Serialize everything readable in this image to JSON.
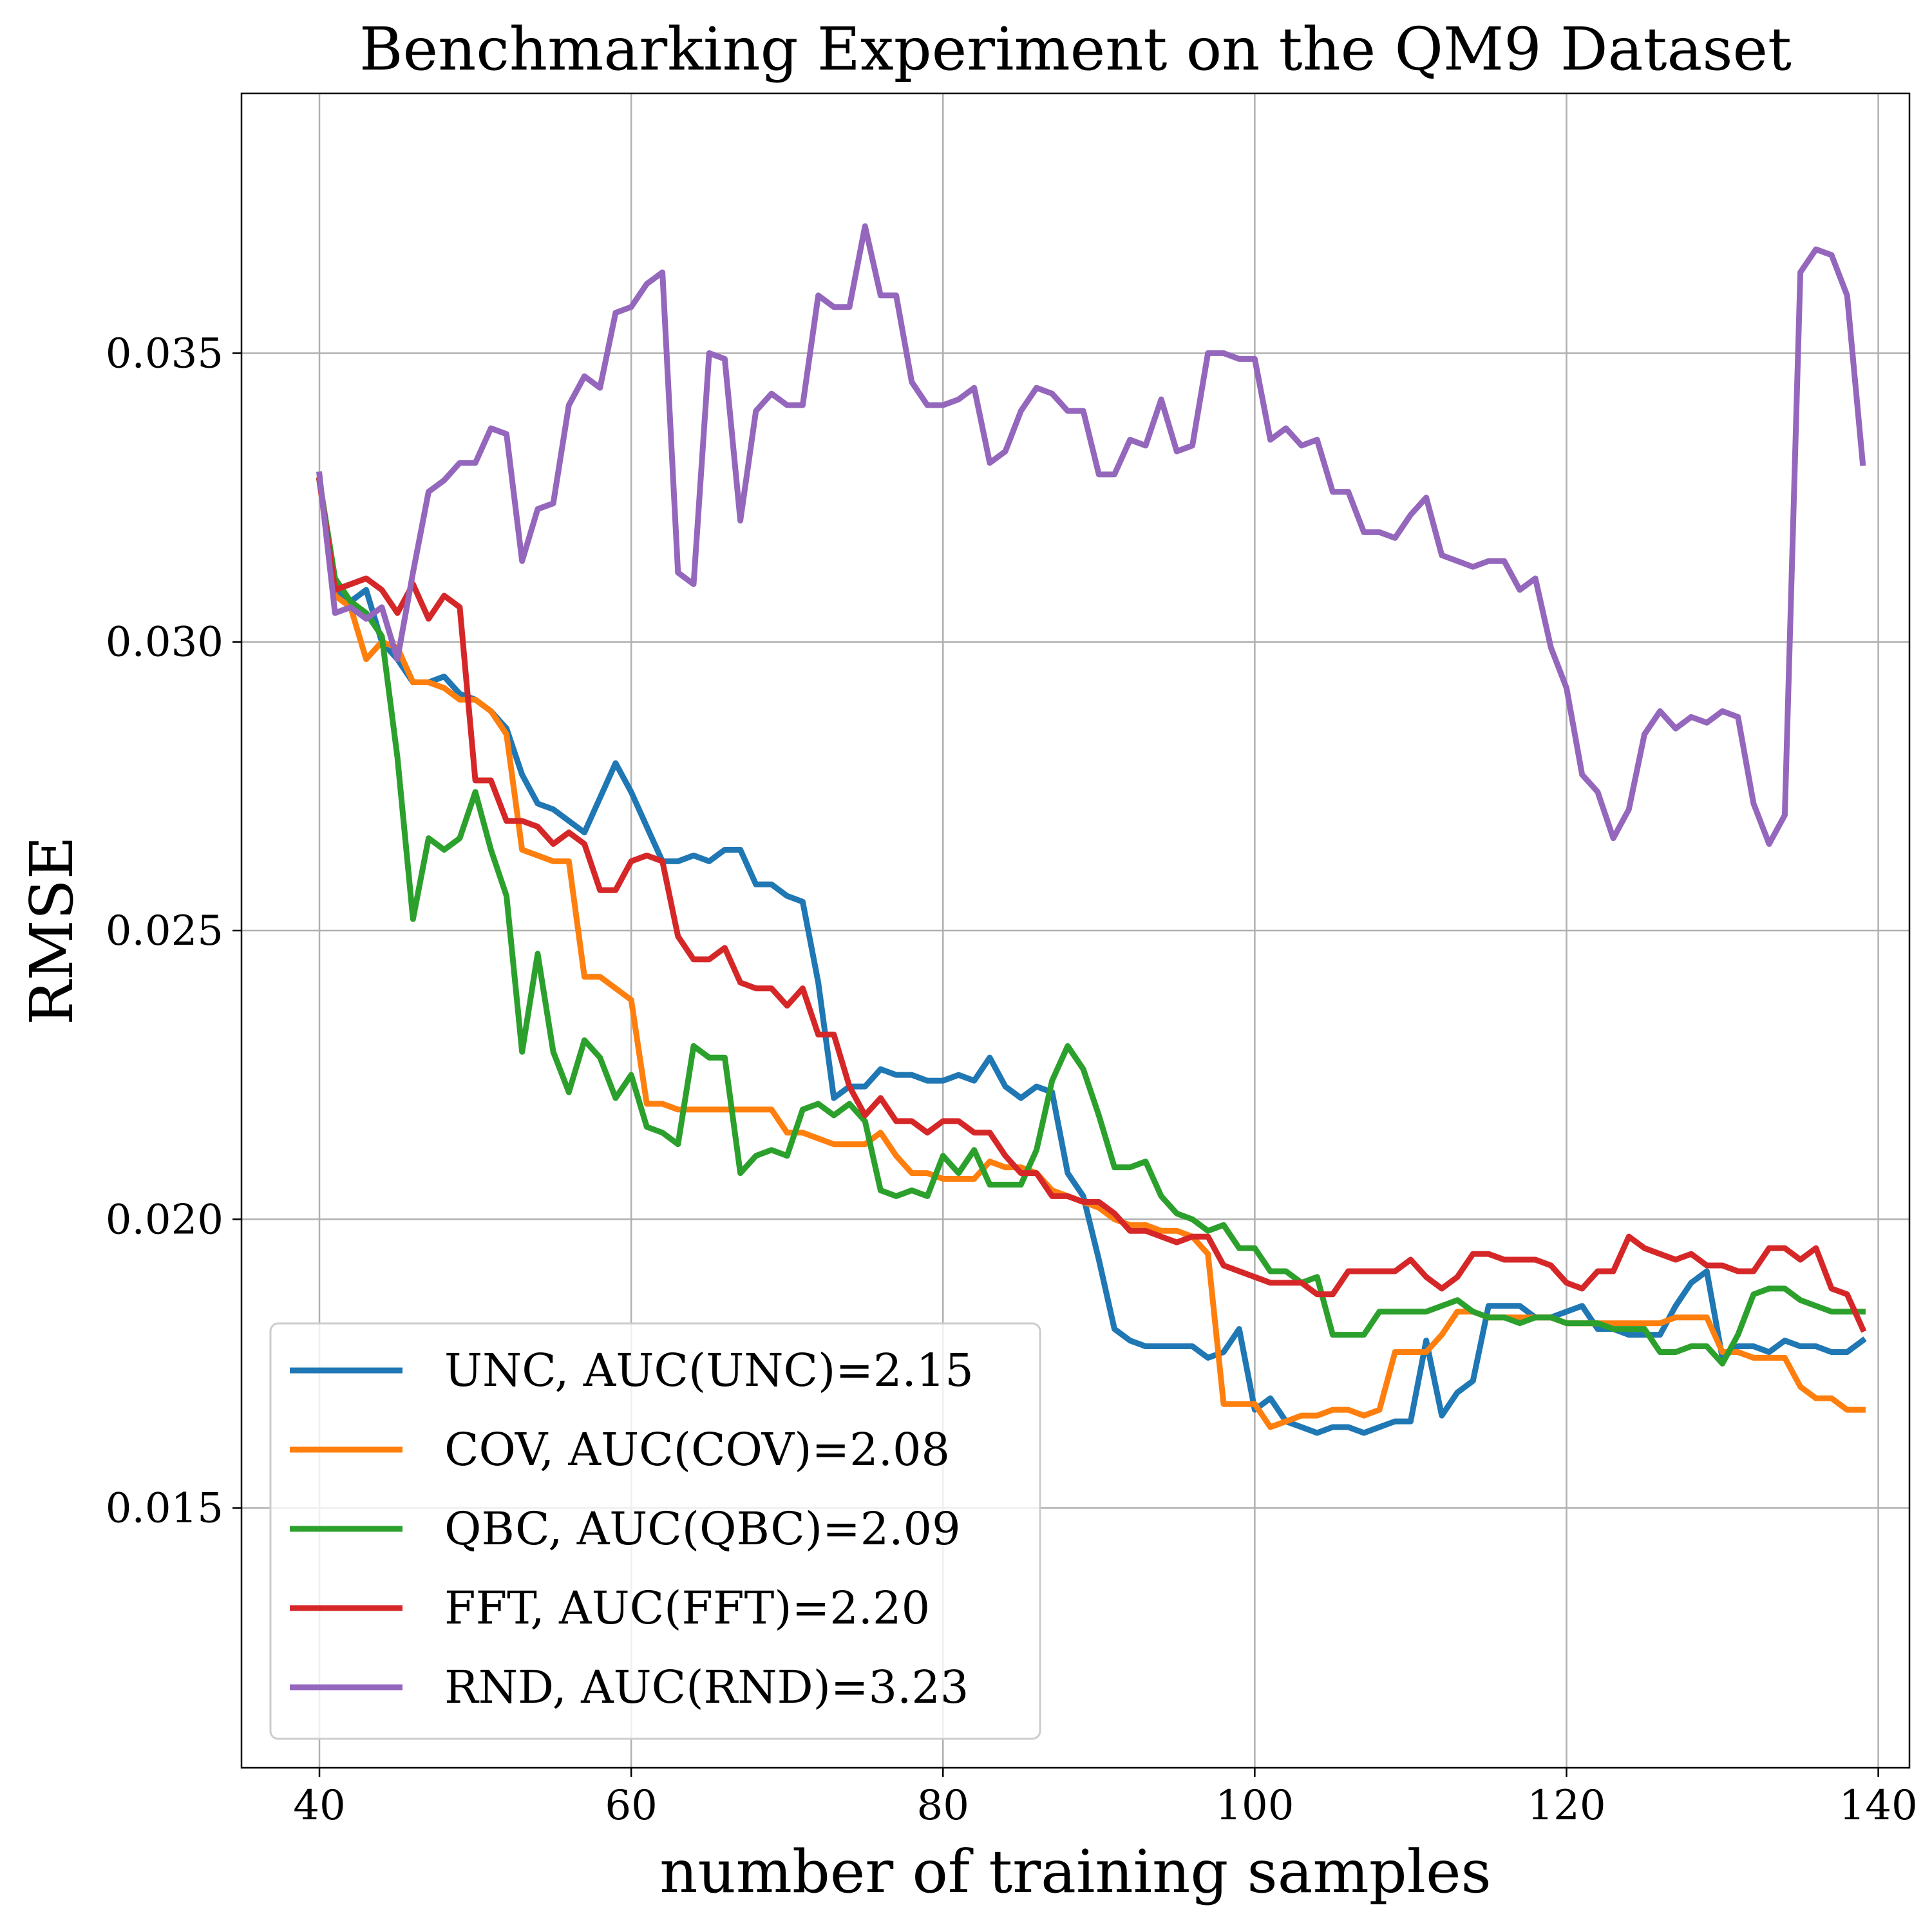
{
  "chart_data": {
    "type": "line",
    "title": "Benchmarking Experiment on the QM9 Dataset",
    "xlabel": "number of training samples",
    "ylabel": "RMSE",
    "xlim": [
      35,
      142
    ],
    "ylim": [
      0.0105,
      0.0395
    ],
    "xticks": [
      40,
      60,
      80,
      100,
      120,
      140
    ],
    "yticks": [
      0.015,
      0.02,
      0.025,
      0.03,
      0.035
    ],
    "xtick_labels": [
      "40",
      "60",
      "80",
      "100",
      "120",
      "140"
    ],
    "ytick_labels": [
      "0.015",
      "0.020",
      "0.025",
      "0.030",
      "0.035"
    ],
    "grid": true,
    "legend_position": "lower-left",
    "x": [
      40,
      41,
      42,
      43,
      44,
      45,
      46,
      47,
      48,
      49,
      50,
      51,
      52,
      53,
      54,
      55,
      56,
      57,
      58,
      59,
      60,
      61,
      62,
      63,
      64,
      65,
      66,
      67,
      68,
      69,
      70,
      71,
      72,
      73,
      74,
      75,
      76,
      77,
      78,
      79,
      80,
      81,
      82,
      83,
      84,
      85,
      86,
      87,
      88,
      89,
      90,
      91,
      92,
      93,
      94,
      95,
      96,
      97,
      98,
      99,
      100,
      101,
      102,
      103,
      104,
      105,
      106,
      107,
      108,
      109,
      110,
      111,
      112,
      113,
      114,
      115,
      116,
      117,
      118,
      119,
      120,
      121,
      122,
      123,
      124,
      125,
      126,
      127,
      128,
      129,
      130,
      131,
      132,
      133,
      134,
      135,
      136,
      137,
      138,
      139
    ],
    "series": [
      {
        "name": "UNC",
        "label": "UNC, AUC(UNC)=2.15",
        "color": "#1f77b4",
        "values": [
          0.0328,
          0.0309,
          0.0307,
          0.0309,
          0.03,
          0.0297,
          0.0293,
          0.0293,
          0.0294,
          0.0291,
          0.029,
          0.0288,
          0.0285,
          0.0277,
          0.0272,
          0.0271,
          0.0269,
          0.0267,
          0.0273,
          0.0279,
          0.0274,
          0.0268,
          0.0262,
          0.0262,
          0.0263,
          0.0262,
          0.0264,
          0.0264,
          0.0258,
          0.0258,
          0.0256,
          0.0255,
          0.0241,
          0.0221,
          0.0223,
          0.0223,
          0.0226,
          0.0225,
          0.0225,
          0.0224,
          0.0224,
          0.0225,
          0.0224,
          0.0228,
          0.0223,
          0.0221,
          0.0223,
          0.0222,
          0.0208,
          0.0204,
          0.0193,
          0.0181,
          0.0179,
          0.0178,
          0.0178,
          0.0178,
          0.0178,
          0.0176,
          0.0177,
          0.0181,
          0.0167,
          0.0169,
          0.0165,
          0.0164,
          0.0163,
          0.0164,
          0.0164,
          0.0163,
          0.0164,
          0.0165,
          0.0165,
          0.0179,
          0.0166,
          0.017,
          0.0172,
          0.0185,
          0.0185,
          0.0185,
          0.0183,
          0.0183,
          0.0184,
          0.0185,
          0.0181,
          0.0181,
          0.018,
          0.018,
          0.018,
          0.0185,
          0.0189,
          0.0191,
          0.0176,
          0.0178,
          0.0178,
          0.0177,
          0.0179,
          0.0178,
          0.0178,
          0.0177,
          0.0177,
          0.0179
        ]
      },
      {
        "name": "COV",
        "label": "COV, AUC(COV)=2.08",
        "color": "#ff7f0e",
        "values": [
          0.0328,
          0.0308,
          0.0306,
          0.0297,
          0.03,
          0.0299,
          0.0293,
          0.0293,
          0.0292,
          0.029,
          0.029,
          0.0288,
          0.0284,
          0.0264,
          0.0263,
          0.0262,
          0.0262,
          0.0242,
          0.0242,
          0.024,
          0.0238,
          0.022,
          0.022,
          0.0219,
          0.0219,
          0.0219,
          0.0219,
          0.0219,
          0.0219,
          0.0219,
          0.0215,
          0.0215,
          0.0214,
          0.0213,
          0.0213,
          0.0213,
          0.0215,
          0.0211,
          0.0208,
          0.0208,
          0.0207,
          0.0207,
          0.0207,
          0.021,
          0.0209,
          0.0209,
          0.0208,
          0.0205,
          0.0204,
          0.0203,
          0.0202,
          0.02,
          0.0199,
          0.0199,
          0.0198,
          0.0198,
          0.0197,
          0.0194,
          0.0168,
          0.0168,
          0.0168,
          0.0164,
          0.0165,
          0.0166,
          0.0166,
          0.0167,
          0.0167,
          0.0166,
          0.0167,
          0.0177,
          0.0177,
          0.0177,
          0.018,
          0.0184,
          0.0184,
          0.0183,
          0.0183,
          0.0183,
          0.0183,
          0.0183,
          0.0182,
          0.0182,
          0.0182,
          0.0182,
          0.0182,
          0.0182,
          0.0182,
          0.0183,
          0.0183,
          0.0183,
          0.0177,
          0.0177,
          0.0176,
          0.0176,
          0.0176,
          0.0171,
          0.0169,
          0.0169,
          0.0167,
          0.0167
        ]
      },
      {
        "name": "QBC",
        "label": "QBC, AUC(QBC)=2.09",
        "color": "#2ca02c",
        "values": [
          0.0328,
          0.0311,
          0.0307,
          0.0305,
          0.0301,
          0.028,
          0.0252,
          0.0266,
          0.0264,
          0.0266,
          0.0274,
          0.0264,
          0.0256,
          0.0229,
          0.0246,
          0.0229,
          0.0222,
          0.0231,
          0.0228,
          0.0221,
          0.0225,
          0.0216,
          0.0215,
          0.0213,
          0.023,
          0.0228,
          0.0228,
          0.0208,
          0.0211,
          0.0212,
          0.0211,
          0.0219,
          0.022,
          0.0218,
          0.022,
          0.0217,
          0.0205,
          0.0204,
          0.0205,
          0.0204,
          0.0211,
          0.0208,
          0.0212,
          0.0206,
          0.0206,
          0.0206,
          0.0212,
          0.0224,
          0.023,
          0.0226,
          0.0218,
          0.0209,
          0.0209,
          0.021,
          0.0204,
          0.0201,
          0.02,
          0.0198,
          0.0199,
          0.0195,
          0.0195,
          0.0191,
          0.0191,
          0.0189,
          0.019,
          0.018,
          0.018,
          0.018,
          0.0184,
          0.0184,
          0.0184,
          0.0184,
          0.0185,
          0.0186,
          0.0184,
          0.0183,
          0.0183,
          0.0182,
          0.0183,
          0.0183,
          0.0182,
          0.0182,
          0.0182,
          0.0181,
          0.0181,
          0.0181,
          0.0177,
          0.0177,
          0.0178,
          0.0178,
          0.0175,
          0.018,
          0.0187,
          0.0188,
          0.0188,
          0.0186,
          0.0185,
          0.0184,
          0.0184,
          0.0184
        ]
      },
      {
        "name": "FFT",
        "label": "FFT, AUC(FFT)=2.20",
        "color": "#d62728",
        "values": [
          0.0328,
          0.0309,
          0.031,
          0.0311,
          0.0309,
          0.0305,
          0.031,
          0.0304,
          0.0308,
          0.0306,
          0.0276,
          0.0276,
          0.0269,
          0.0269,
          0.0268,
          0.0265,
          0.0267,
          0.0265,
          0.0257,
          0.0257,
          0.0262,
          0.0263,
          0.0262,
          0.0249,
          0.0245,
          0.0245,
          0.0247,
          0.0241,
          0.024,
          0.024,
          0.0237,
          0.024,
          0.0232,
          0.0232,
          0.0223,
          0.0218,
          0.0221,
          0.0217,
          0.0217,
          0.0215,
          0.0217,
          0.0217,
          0.0215,
          0.0215,
          0.0211,
          0.0208,
          0.0208,
          0.0204,
          0.0204,
          0.0203,
          0.0203,
          0.0201,
          0.0198,
          0.0198,
          0.0197,
          0.0196,
          0.0197,
          0.0197,
          0.0192,
          0.0191,
          0.019,
          0.0189,
          0.0189,
          0.0189,
          0.0187,
          0.0187,
          0.0191,
          0.0191,
          0.0191,
          0.0191,
          0.0193,
          0.019,
          0.0188,
          0.019,
          0.0194,
          0.0194,
          0.0193,
          0.0193,
          0.0193,
          0.0192,
          0.0189,
          0.0188,
          0.0191,
          0.0191,
          0.0197,
          0.0195,
          0.0194,
          0.0193,
          0.0194,
          0.0192,
          0.0192,
          0.0191,
          0.0191,
          0.0195,
          0.0195,
          0.0193,
          0.0195,
          0.0188,
          0.0187,
          0.0181
        ]
      },
      {
        "name": "RND",
        "label": "RND, AUC(RND)=3.23",
        "color": "#9467bd",
        "values": [
          0.0329,
          0.0305,
          0.0306,
          0.0304,
          0.0306,
          0.0297,
          0.0312,
          0.0326,
          0.0328,
          0.0331,
          0.0331,
          0.0337,
          0.0336,
          0.0314,
          0.0323,
          0.0324,
          0.0341,
          0.0346,
          0.0344,
          0.0357,
          0.0358,
          0.0362,
          0.0364,
          0.0312,
          0.031,
          0.035,
          0.0349,
          0.0321,
          0.034,
          0.0343,
          0.0341,
          0.0341,
          0.036,
          0.0358,
          0.0358,
          0.0372,
          0.036,
          0.036,
          0.0345,
          0.0341,
          0.0341,
          0.0342,
          0.0344,
          0.0331,
          0.0333,
          0.034,
          0.0344,
          0.0343,
          0.034,
          0.034,
          0.0329,
          0.0329,
          0.0335,
          0.0334,
          0.0342,
          0.0333,
          0.0334,
          0.035,
          0.035,
          0.0349,
          0.0349,
          0.0335,
          0.0337,
          0.0334,
          0.0335,
          0.0326,
          0.0326,
          0.0319,
          0.0319,
          0.0318,
          0.0322,
          0.0325,
          0.0315,
          0.0314,
          0.0313,
          0.0314,
          0.0314,
          0.0309,
          0.0311,
          0.0299,
          0.0292,
          0.0277,
          0.0274,
          0.0266,
          0.0271,
          0.0284,
          0.0288,
          0.0285,
          0.0287,
          0.0286,
          0.0288,
          0.0287,
          0.0272,
          0.0265,
          0.027,
          0.0364,
          0.0368,
          0.0367,
          0.036,
          0.0331
        ]
      }
    ]
  }
}
